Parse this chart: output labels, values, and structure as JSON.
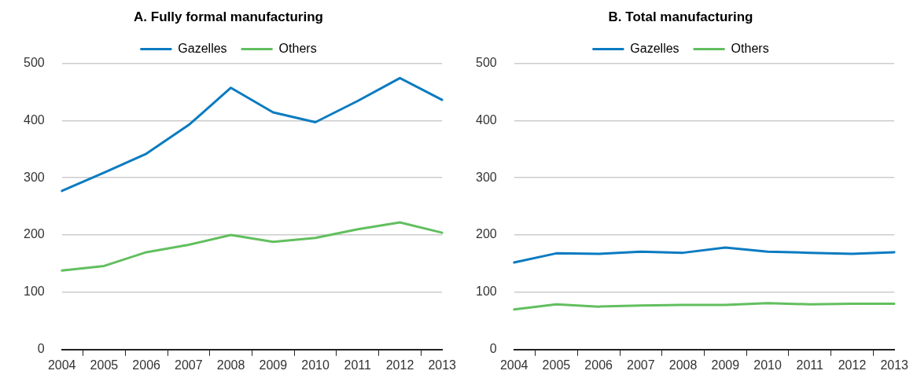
{
  "chart_data": [
    {
      "type": "line",
      "title": "A. Fully formal manufacturing",
      "categories": [
        "2004",
        "2005",
        "2006",
        "2007",
        "2008",
        "2009",
        "2010",
        "2011",
        "2012",
        "2013"
      ],
      "series": [
        {
          "name": "Gazelles",
          "color": "#0a7bc1",
          "values": [
            277,
            309,
            342,
            392,
            457,
            414,
            397,
            434,
            474,
            436
          ]
        },
        {
          "name": "Others",
          "color": "#62bf5f",
          "values": [
            138,
            146,
            170,
            183,
            200,
            188,
            195,
            210,
            222,
            204
          ]
        }
      ],
      "ylim": [
        0,
        500
      ],
      "yticks": [
        0,
        100,
        200,
        300,
        400,
        500
      ],
      "grid": "y",
      "legend": "top",
      "marker": "none",
      "line_style": "solid"
    },
    {
      "type": "line",
      "title": "B. Total manufacturing",
      "categories": [
        "2004",
        "2005",
        "2006",
        "2007",
        "2008",
        "2009",
        "2010",
        "2011",
        "2012",
        "2013"
      ],
      "series": [
        {
          "name": "Gazelles",
          "color": "#0a7bc1",
          "values": [
            152,
            168,
            167,
            171,
            169,
            178,
            171,
            169,
            167,
            170
          ]
        },
        {
          "name": "Others",
          "color": "#62bf5f",
          "values": [
            70,
            79,
            75,
            77,
            78,
            78,
            81,
            79,
            80,
            80
          ]
        }
      ],
      "ylim": [
        0,
        500
      ],
      "yticks": [
        0,
        100,
        200,
        300,
        400,
        500
      ],
      "grid": "y",
      "legend": "top",
      "marker": "none",
      "line_style": "solid"
    }
  ]
}
